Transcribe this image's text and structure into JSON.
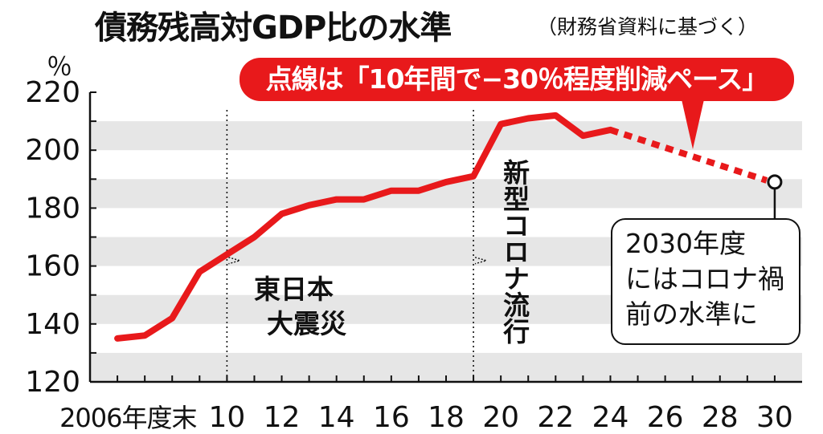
{
  "title": "債務残高対GDP比の水準",
  "source": "（財務省資料に基づく）",
  "unit": "％",
  "badge": "点線は「10年間で−30％程度削減ペース」",
  "callout": {
    "line1": "2030年度",
    "line2": "にはコロナ禍",
    "line3": "前の水準に"
  },
  "chart_data": {
    "type": "line",
    "x": [
      "2006",
      "2007",
      "2008",
      "2009",
      "2010",
      "2011",
      "2012",
      "2013",
      "2014",
      "2015",
      "2016",
      "2017",
      "2018",
      "2019",
      "2020",
      "2021",
      "2022",
      "2023",
      "2024"
    ],
    "x_tick_labels": [
      "2006年度末",
      "10",
      "12",
      "14",
      "16",
      "18",
      "20",
      "22",
      "24",
      "26",
      "28",
      "30"
    ],
    "x_tick_years": [
      2006,
      2010,
      2012,
      2014,
      2016,
      2018,
      2020,
      2022,
      2024,
      2026,
      2028,
      2030
    ],
    "series": [
      {
        "values": [
          135,
          136,
          142,
          158,
          164,
          170,
          178,
          181,
          183,
          183,
          186,
          186,
          189,
          191,
          209,
          211,
          212,
          205,
          207
        ],
        "color": "#e8191b",
        "style": "solid"
      },
      {
        "x": [
          "2024",
          "2030"
        ],
        "values": [
          207,
          189
        ],
        "color": "#e8191b",
        "style": "dashed"
      }
    ],
    "y_ticks": [
      120,
      140,
      160,
      180,
      200,
      220
    ],
    "ylim": [
      120,
      220
    ],
    "xlim": [
      2005,
      2031
    ],
    "grid": "alternating horizontal bands",
    "target_point": {
      "x": "2030",
      "y": 189
    },
    "annotations": [
      {
        "x": "2010",
        "text": "東日本大震災",
        "lines": [
          "東日本",
          "大震災"
        ]
      },
      {
        "x": "2019",
        "text": "新型コロナ流行"
      }
    ]
  }
}
